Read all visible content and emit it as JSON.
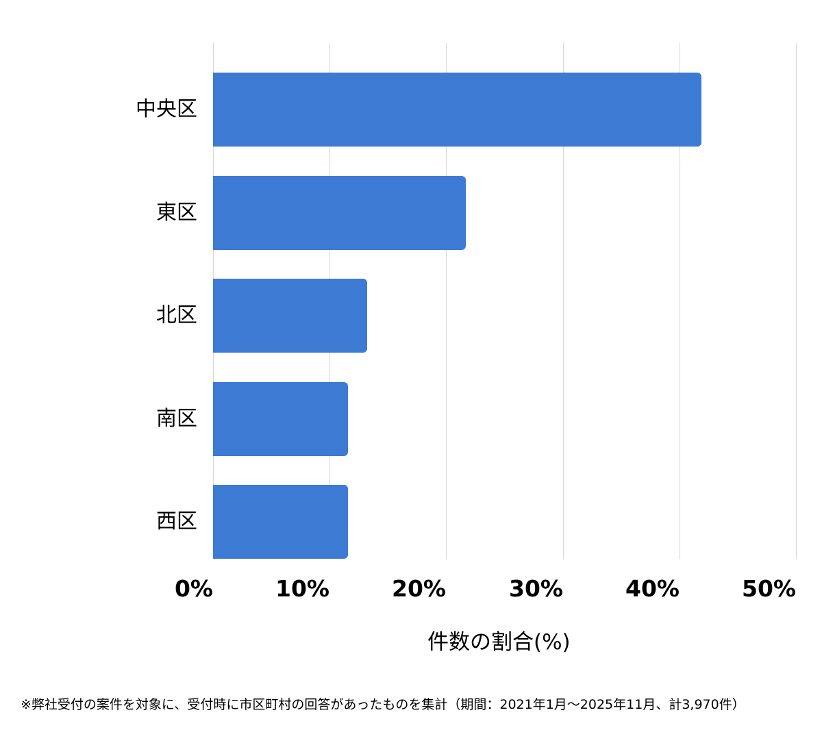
{
  "chart_data": {
    "type": "bar",
    "orientation": "horizontal",
    "categories": [
      "中央区",
      "東区",
      "北区",
      "南区",
      "西区"
    ],
    "values": [
      41.9,
      21.7,
      13.2,
      11.6,
      11.6
    ],
    "title": "",
    "xlabel": "件数の割合(%)",
    "ylabel": "",
    "xlim": [
      0,
      50
    ],
    "x_ticks": [
      "0%",
      "10%",
      "20%",
      "30%",
      "40%",
      "50%"
    ],
    "grid": true,
    "legend": null,
    "bar_color": "#3c7ad4",
    "footnote": "※弊社受付の案件を対象に、受付時に市区町村の回答があったものを集計（期間：2021年1月～2025年11月、計3,970件）"
  }
}
